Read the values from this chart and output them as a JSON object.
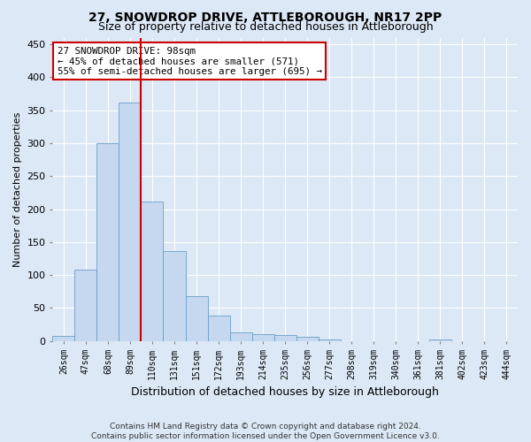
{
  "title": "27, SNOWDROP DRIVE, ATTLEBOROUGH, NR17 2PP",
  "subtitle": "Size of property relative to detached houses in Attleborough",
  "xlabel": "Distribution of detached houses by size in Attleborough",
  "ylabel": "Number of detached properties",
  "categories": [
    "26sqm",
    "47sqm",
    "68sqm",
    "89sqm",
    "110sqm",
    "131sqm",
    "151sqm",
    "172sqm",
    "193sqm",
    "214sqm",
    "235sqm",
    "256sqm",
    "277sqm",
    "298sqm",
    "319sqm",
    "340sqm",
    "361sqm",
    "381sqm",
    "402sqm",
    "423sqm",
    "444sqm"
  ],
  "values": [
    8,
    108,
    300,
    362,
    212,
    136,
    68,
    38,
    13,
    10,
    9,
    6,
    3,
    0,
    0,
    0,
    0,
    3,
    0,
    0,
    0
  ],
  "bar_color": "#c5d8ef",
  "bar_edge_color": "#6a9fca",
  "vline_color": "#cc0000",
  "vline_x": 3.5,
  "annotation_line1": "27 SNOWDROP DRIVE: 98sqm",
  "annotation_line2": "← 45% of detached houses are smaller (571)",
  "annotation_line3": "55% of semi-detached houses are larger (695) →",
  "annotation_box_facecolor": "#ffffff",
  "annotation_box_edgecolor": "#cc0000",
  "ylim": [
    0,
    460
  ],
  "yticks": [
    0,
    50,
    100,
    150,
    200,
    250,
    300,
    350,
    400,
    450
  ],
  "footer_line1": "Contains HM Land Registry data © Crown copyright and database right 2024.",
  "footer_line2": "Contains public sector information licensed under the Open Government Licence v3.0.",
  "bg_color": "#dce8f5",
  "plot_bg_color": "#dce8f5",
  "title_fontsize": 10,
  "subtitle_fontsize": 9,
  "ylabel_fontsize": 8,
  "xlabel_fontsize": 9
}
